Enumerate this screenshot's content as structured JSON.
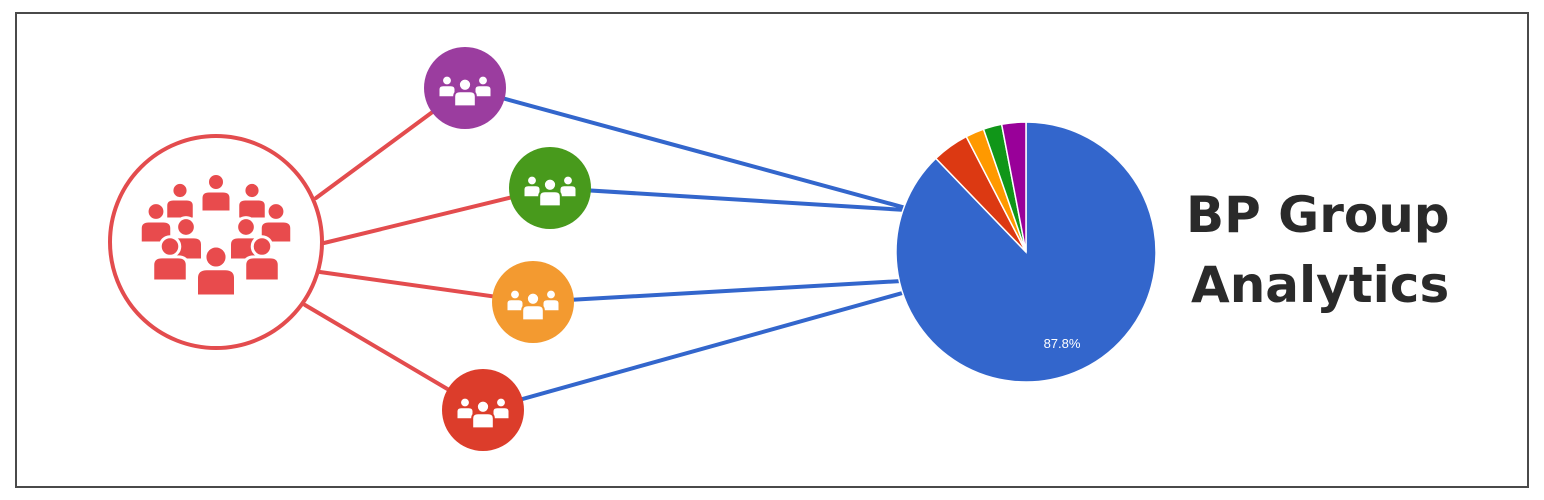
{
  "title": {
    "line1": "BP Group",
    "line2": "Analytics"
  },
  "hub": {
    "icon": "crowd-icon",
    "color": "#e84b4d",
    "link_color": "#e34c4e"
  },
  "groups": [
    {
      "id": "purple",
      "icon": "group-icon",
      "color": "#9b3d9f"
    },
    {
      "id": "green",
      "icon": "group-icon",
      "color": "#489a1c"
    },
    {
      "id": "orange",
      "icon": "group-icon",
      "color": "#f39a30"
    },
    {
      "id": "red",
      "icon": "group-icon",
      "color": "#dc3d2b"
    }
  ],
  "connector_color": "#3366cc",
  "chart_data": {
    "type": "pie",
    "slices": [
      {
        "value": 87.8,
        "color": "#3366cc",
        "label": "87.8%"
      },
      {
        "value": 4.6,
        "color": "#dc3912"
      },
      {
        "value": 2.3,
        "color": "#ff9900"
      },
      {
        "value": 2.3,
        "color": "#109618"
      },
      {
        "value": 3.0,
        "color": "#990099"
      }
    ]
  }
}
